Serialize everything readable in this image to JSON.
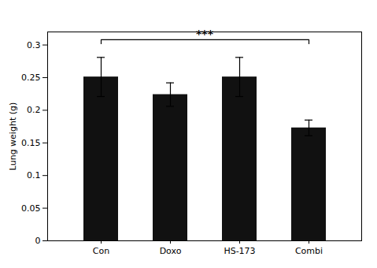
{
  "chart_data": {
    "type": "bar",
    "categories": [
      "Con",
      "Doxo",
      "HS-173",
      "Combi"
    ],
    "values": [
      0.251,
      0.224,
      0.251,
      0.173
    ],
    "errors": [
      0.03,
      0.018,
      0.03,
      0.012
    ],
    "color": "#111111",
    "ylabel": "Lung weight (g)",
    "ylim": [
      0,
      0.32
    ],
    "yticks": [
      0,
      0.05,
      0.1,
      0.15,
      0.2,
      0.25,
      0.3
    ],
    "grid": false,
    "annotations": [
      {
        "text": "***",
        "from": "Con",
        "to": "Combi",
        "y": 0.308
      }
    ]
  }
}
